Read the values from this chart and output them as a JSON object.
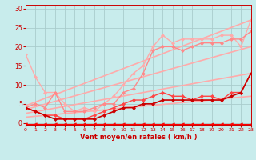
{
  "title": "",
  "xlabel": "Vent moyen/en rafales ( km/h )",
  "ylabel": "",
  "xlim": [
    0,
    23
  ],
  "ylim": [
    -0.5,
    31
  ],
  "yticks": [
    0,
    5,
    10,
    15,
    20,
    25,
    30
  ],
  "xticks": [
    0,
    1,
    2,
    3,
    4,
    5,
    6,
    7,
    8,
    9,
    10,
    11,
    12,
    13,
    14,
    15,
    16,
    17,
    18,
    19,
    20,
    21,
    22,
    23
  ],
  "bg_color": "#c8ecec",
  "grid_color": "#b0d8d8",
  "lines": [
    {
      "x": [
        0,
        23
      ],
      "y": [
        4.5,
        27
      ],
      "color": "#ffaaaa",
      "lw": 1.2,
      "marker": null,
      "ms": 0
    },
    {
      "x": [
        0,
        23
      ],
      "y": [
        3.5,
        20
      ],
      "color": "#ffaaaa",
      "lw": 1.2,
      "marker": null,
      "ms": 0
    },
    {
      "x": [
        0,
        23
      ],
      "y": [
        2.5,
        13
      ],
      "color": "#ffaaaa",
      "lw": 1.2,
      "marker": null,
      "ms": 0
    },
    {
      "x": [
        0,
        23
      ],
      "y": [
        1.5,
        7
      ],
      "color": "#ffaaaa",
      "lw": 1.2,
      "marker": null,
      "ms": 0
    },
    {
      "x": [
        0,
        1,
        2,
        3,
        4,
        5,
        6,
        7,
        8,
        9,
        10,
        11,
        12,
        13,
        14,
        15,
        16,
        17,
        18,
        19,
        20,
        21,
        22,
        23
      ],
      "y": [
        18,
        12,
        8,
        8,
        5,
        3,
        4,
        3,
        5,
        7,
        10,
        13,
        15,
        20,
        23,
        21,
        22,
        22,
        22,
        22,
        23,
        23,
        20,
        27
      ],
      "color": "#ffaaaa",
      "lw": 1.0,
      "marker": "D",
      "ms": 2
    },
    {
      "x": [
        0,
        1,
        2,
        3,
        4,
        5,
        6,
        7,
        8,
        9,
        10,
        11,
        12,
        13,
        14,
        15,
        16,
        17,
        18,
        19,
        20,
        21,
        22,
        23
      ],
      "y": [
        4,
        5,
        4,
        8,
        3,
        3,
        3,
        4,
        5,
        5,
        8,
        9,
        13,
        19,
        20,
        20,
        19,
        20,
        21,
        21,
        21,
        22,
        22,
        24
      ],
      "color": "#ff8888",
      "lw": 1.0,
      "marker": "D",
      "ms": 2
    },
    {
      "x": [
        0,
        1,
        2,
        3,
        4,
        5,
        6,
        7,
        8,
        9,
        10,
        11,
        12,
        13,
        14,
        15,
        16,
        17,
        18,
        19,
        20,
        21,
        22,
        23
      ],
      "y": [
        4,
        3,
        2,
        2,
        1,
        1,
        1,
        2,
        3,
        4,
        5,
        6,
        6,
        7,
        8,
        7,
        7,
        6,
        7,
        7,
        6,
        8,
        8,
        13
      ],
      "color": "#ff4444",
      "lw": 1.0,
      "marker": "D",
      "ms": 2
    },
    {
      "x": [
        0,
        1,
        2,
        3,
        4,
        5,
        6,
        7,
        8,
        9,
        10,
        11,
        12,
        13,
        14,
        15,
        16,
        17,
        18,
        19,
        20,
        21,
        22,
        23
      ],
      "y": [
        4,
        3,
        2,
        1,
        1,
        1,
        1,
        1,
        2,
        3,
        4,
        4,
        5,
        5,
        6,
        6,
        6,
        6,
        6,
        6,
        6,
        7,
        8,
        13
      ],
      "color": "#cc0000",
      "lw": 1.2,
      "marker": "D",
      "ms": 2
    },
    {
      "x": [
        0,
        1,
        2,
        3,
        4,
        5,
        6,
        7,
        8,
        9,
        10,
        11,
        12,
        13,
        14,
        15,
        16,
        17,
        18,
        19,
        20,
        21,
        22,
        23
      ],
      "y": [
        -0.2,
        -0.2,
        -0.2,
        -0.2,
        -0.2,
        -0.2,
        -0.2,
        -0.2,
        -0.2,
        -0.2,
        -0.2,
        -0.2,
        -0.2,
        -0.2,
        -0.2,
        -0.2,
        -0.2,
        -0.2,
        -0.2,
        -0.2,
        -0.2,
        -0.2,
        -0.2,
        -0.2
      ],
      "color": "#ff0000",
      "lw": 0.8,
      "marker": "<",
      "ms": 2.5
    }
  ]
}
